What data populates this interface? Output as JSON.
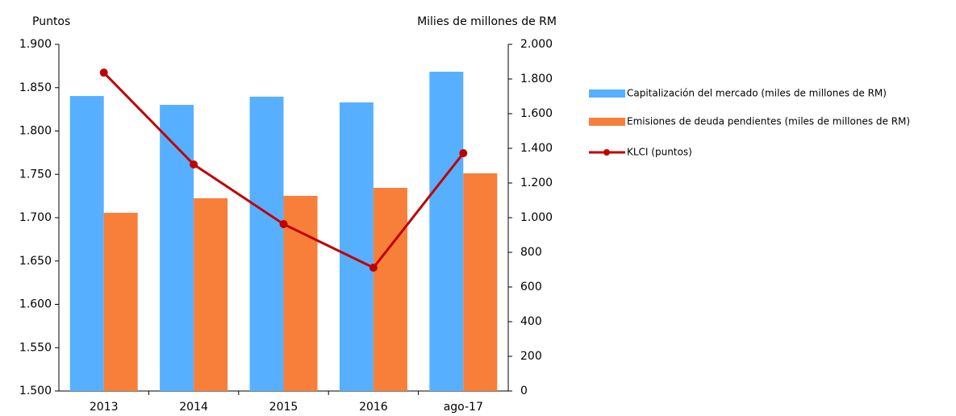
{
  "chart_data": {
    "type": "bar_line",
    "ylabel": "Puntos",
    "y2label": "Milies de millones de RM",
    "categories": [
      "2013",
      "2014",
      "2015",
      "2016",
      "ago-17"
    ],
    "series": [
      {
        "name": "Capitalización del mercado (miles de millones de RM)",
        "type": "bar",
        "axis": "y2",
        "color": "#57b0ff",
        "values": [
          1702,
          1651,
          1698,
          1665,
          1842
        ]
      },
      {
        "name": "Emisiones de deuda pendientes (miles de millones de RM)",
        "type": "bar",
        "axis": "y2",
        "color": "#f77f3a",
        "values": [
          1028,
          1112,
          1126,
          1172,
          1256
        ]
      },
      {
        "name": "KLCI (puntos)",
        "type": "line",
        "axis": "y",
        "color": "#c00000",
        "values": [
          1867.4,
          1761.4,
          1692.6,
          1642.3,
          1774.4
        ]
      }
    ],
    "ylim": [
      1500,
      1900
    ],
    "yticks": [
      {
        "value": 1500,
        "label": "1.500"
      },
      {
        "value": 1550,
        "label": "1.550"
      },
      {
        "value": 1600,
        "label": "1.600"
      },
      {
        "value": 1650,
        "label": "1.650"
      },
      {
        "value": 1700,
        "label": "1.700"
      },
      {
        "value": 1750,
        "label": "1.750"
      },
      {
        "value": 1800,
        "label": "1.800"
      },
      {
        "value": 1850,
        "label": "1.850"
      },
      {
        "value": 1900,
        "label": "1.900"
      }
    ],
    "y2lim": [
      0,
      2000
    ],
    "y2ticks": [
      0,
      200,
      400,
      600,
      800,
      {
        "value": 1000,
        "label": "1.000"
      },
      {
        "value": 1200,
        "label": "1.200"
      },
      {
        "value": 1400,
        "label": "1.400"
      },
      {
        "value": 1600,
        "label": "1.600"
      },
      {
        "value": 1800,
        "label": "1.800"
      },
      {
        "value": 2000,
        "label": "2.000"
      }
    ],
    "legend": "right"
  }
}
